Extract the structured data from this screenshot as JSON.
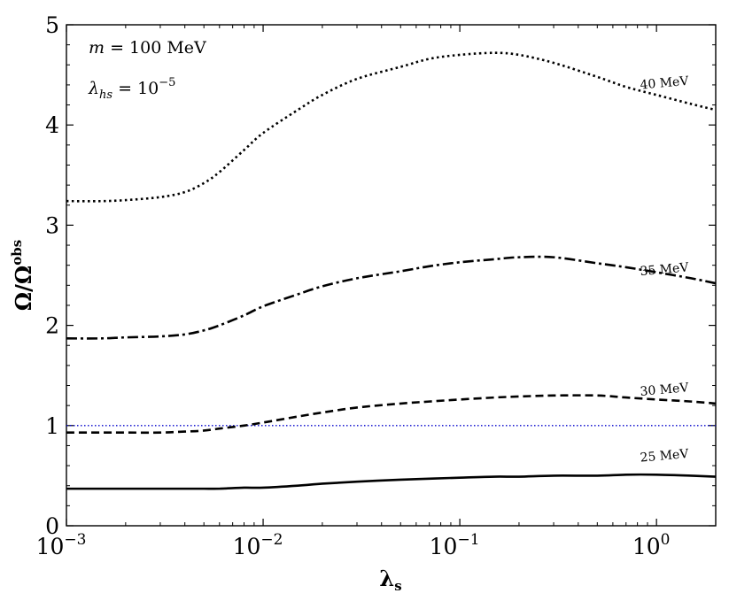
{
  "chart_data": {
    "type": "line",
    "xscale": "log",
    "xlim": [
      0.001,
      2.0
    ],
    "ylim": [
      0,
      5
    ],
    "xlabel": "λ",
    "xlabel_sub": "s",
    "ylabel": "Ω/Ω",
    "ylabel_sup": "obs",
    "xticks": [
      {
        "value": 0.001,
        "base": "10",
        "exp": "−3"
      },
      {
        "value": 0.01,
        "base": "10",
        "exp": "−2"
      },
      {
        "value": 0.1,
        "base": "10",
        "exp": "−1"
      },
      {
        "value": 1,
        "base": "10",
        "exp": "0"
      }
    ],
    "yticks": [
      {
        "value": 0,
        "label": "0"
      },
      {
        "value": 1,
        "label": "1"
      },
      {
        "value": 2,
        "label": "2"
      },
      {
        "value": 3,
        "label": "3"
      },
      {
        "value": 4,
        "label": "4"
      },
      {
        "value": 5,
        "label": "5"
      }
    ],
    "annotations": {
      "mass": "m = 100 MeV",
      "mass_var": "m",
      "mass_eq": " = 100 MeV",
      "coupling_var": "λ",
      "coupling_sub": "hs",
      "coupling_eq": " = 10",
      "coupling_exp": "−5"
    },
    "reference_line": {
      "y": 1.0,
      "color": "#0000cc",
      "style": "dotted"
    },
    "series": [
      {
        "name": "40 MeV",
        "label": "40 MeV",
        "style": "dotted",
        "color": "#000000",
        "label_at": {
          "x": 1.1,
          "y": 4.38
        },
        "x": [
          0.001,
          0.0015,
          0.002,
          0.003,
          0.004,
          0.005,
          0.006,
          0.008,
          0.01,
          0.015,
          0.02,
          0.03,
          0.05,
          0.07,
          0.1,
          0.15,
          0.2,
          0.3,
          0.5,
          0.7,
          1.0,
          1.5,
          2.0
        ],
        "y": [
          3.24,
          3.24,
          3.25,
          3.28,
          3.33,
          3.42,
          3.53,
          3.75,
          3.92,
          4.15,
          4.3,
          4.46,
          4.58,
          4.66,
          4.7,
          4.72,
          4.7,
          4.62,
          4.48,
          4.38,
          4.3,
          4.21,
          4.15
        ]
      },
      {
        "name": "35 MeV",
        "label": "35 MeV",
        "style": "dashdot",
        "color": "#000000",
        "label_at": {
          "x": 1.1,
          "y": 2.52
        },
        "x": [
          0.001,
          0.0015,
          0.002,
          0.003,
          0.004,
          0.005,
          0.006,
          0.008,
          0.01,
          0.015,
          0.02,
          0.03,
          0.05,
          0.07,
          0.1,
          0.15,
          0.2,
          0.3,
          0.5,
          0.7,
          1.0,
          1.5,
          2.0
        ],
        "y": [
          1.87,
          1.87,
          1.88,
          1.89,
          1.91,
          1.95,
          2.0,
          2.1,
          2.19,
          2.31,
          2.39,
          2.47,
          2.54,
          2.59,
          2.63,
          2.66,
          2.68,
          2.68,
          2.62,
          2.58,
          2.53,
          2.47,
          2.42
        ]
      },
      {
        "name": "30 MeV",
        "label": "30 MeV",
        "style": "dashed",
        "color": "#000000",
        "label_at": {
          "x": 1.1,
          "y": 1.32
        },
        "x": [
          0.001,
          0.0015,
          0.002,
          0.003,
          0.004,
          0.005,
          0.006,
          0.008,
          0.01,
          0.015,
          0.02,
          0.03,
          0.05,
          0.07,
          0.1,
          0.15,
          0.2,
          0.3,
          0.5,
          0.7,
          1.0,
          1.5,
          2.0
        ],
        "y": [
          0.93,
          0.93,
          0.93,
          0.93,
          0.94,
          0.95,
          0.97,
          1.0,
          1.03,
          1.09,
          1.13,
          1.18,
          1.22,
          1.24,
          1.26,
          1.28,
          1.29,
          1.3,
          1.3,
          1.28,
          1.26,
          1.24,
          1.22
        ]
      },
      {
        "name": "25 MeV",
        "label": "25 MeV",
        "style": "solid",
        "color": "#000000",
        "label_at": {
          "x": 1.1,
          "y": 0.66
        },
        "x": [
          0.001,
          0.0015,
          0.002,
          0.003,
          0.004,
          0.005,
          0.006,
          0.008,
          0.01,
          0.015,
          0.02,
          0.03,
          0.05,
          0.07,
          0.1,
          0.15,
          0.2,
          0.3,
          0.5,
          0.7,
          1.0,
          1.5,
          2.0
        ],
        "y": [
          0.37,
          0.37,
          0.37,
          0.37,
          0.37,
          0.37,
          0.37,
          0.38,
          0.38,
          0.4,
          0.42,
          0.44,
          0.46,
          0.47,
          0.48,
          0.49,
          0.49,
          0.5,
          0.5,
          0.51,
          0.51,
          0.5,
          0.49
        ]
      }
    ]
  }
}
